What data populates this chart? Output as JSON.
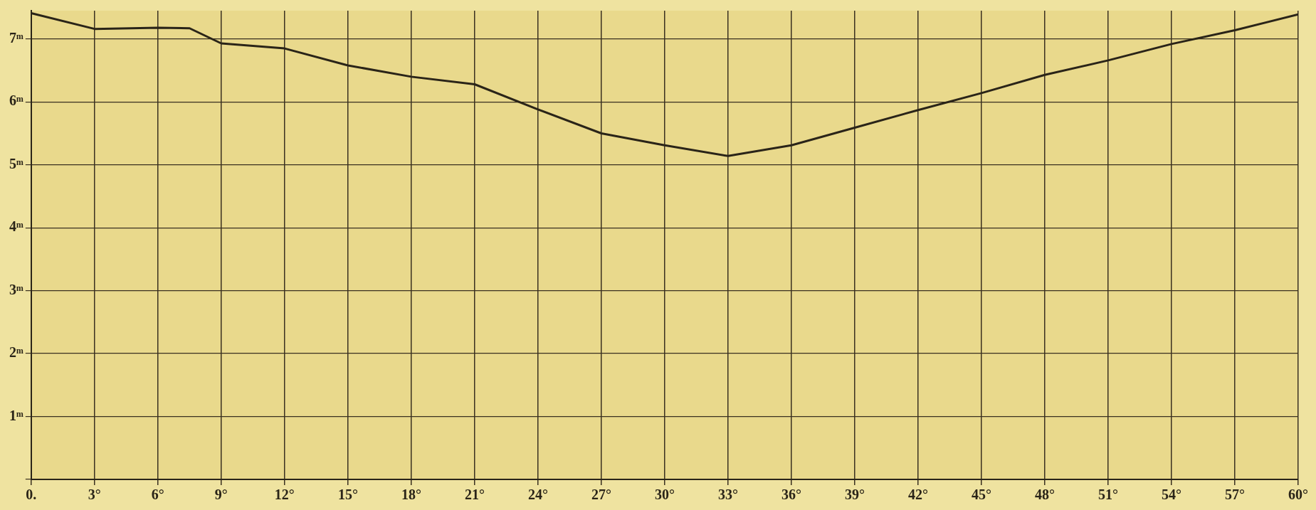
{
  "chart_data": {
    "type": "line",
    "x": [
      0,
      3,
      6,
      7.5,
      9,
      12,
      15,
      18,
      21,
      24,
      27,
      30,
      33,
      36,
      39,
      42,
      45,
      48,
      51,
      54,
      57,
      60
    ],
    "series": [
      {
        "color": "#2a2418",
        "values": [
          7.41,
          7.16,
          7.18,
          7.17,
          6.93,
          6.85,
          6.58,
          6.4,
          6.28,
          5.88,
          5.5,
          5.31,
          5.14,
          5.31,
          5.59,
          5.87,
          6.14,
          6.43,
          6.66,
          6.92,
          7.14,
          7.39
        ]
      }
    ],
    "xlim": [
      0,
      60
    ],
    "xticks": [
      {
        "value": 0,
        "label": "0."
      },
      {
        "value": 3,
        "label": "3°"
      },
      {
        "value": 6,
        "label": "6°"
      },
      {
        "value": 9,
        "label": "9°"
      },
      {
        "value": 12,
        "label": "12°"
      },
      {
        "value": 15,
        "label": "15°"
      },
      {
        "value": 18,
        "label": "18°"
      },
      {
        "value": 21,
        "label": "21°"
      },
      {
        "value": 24,
        "label": "24°"
      },
      {
        "value": 27,
        "label": "27°"
      },
      {
        "value": 30,
        "label": "30°"
      },
      {
        "value": 33,
        "label": "33°"
      },
      {
        "value": 36,
        "label": "36°"
      },
      {
        "value": 39,
        "label": "39°"
      },
      {
        "value": 42,
        "label": "42°"
      },
      {
        "value": 45,
        "label": "45°"
      },
      {
        "value": 48,
        "label": "48°"
      },
      {
        "value": 51,
        "label": "51°"
      },
      {
        "value": 54,
        "label": "54°"
      },
      {
        "value": 57,
        "label": "57°"
      },
      {
        "value": 60,
        "label": "60°"
      }
    ],
    "ylim": [
      0,
      7.45
    ],
    "yticks": [
      {
        "value": 0,
        "label": null
      },
      {
        "value": 1,
        "label": "1ᵐ"
      },
      {
        "value": 2,
        "label": "2ᵐ"
      },
      {
        "value": 3,
        "label": "3ᵐ"
      },
      {
        "value": 4,
        "label": "4ᵐ"
      },
      {
        "value": 5,
        "label": "5ᵐ"
      },
      {
        "value": 6,
        "label": "6ᵐ"
      },
      {
        "value": 7,
        "label": "7ᵐ"
      }
    ],
    "grid": true,
    "marker": "none",
    "line_style": "solid"
  }
}
